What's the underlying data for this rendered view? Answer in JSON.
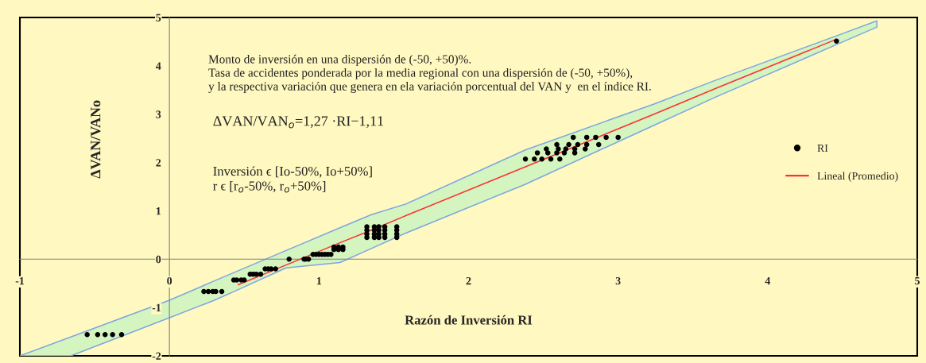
{
  "chart_data": {
    "type": "scatter",
    "xlabel": "Razón de Inversión RI",
    "ylabel": "ΔVAN/VANo",
    "xlim": [
      -1,
      5
    ],
    "ylim": [
      -2,
      5
    ],
    "xticks": [
      -1,
      0,
      1,
      2,
      3,
      4,
      5
    ],
    "yticks": [
      -2,
      -1,
      0,
      1,
      2,
      3,
      4,
      5
    ],
    "grid": false,
    "legend": "right",
    "annotations": [
      "Monto de inversión en una dispersión de (-50, +50)%.\nTasa de accidentes ponderada por la media regional con una dispersión de (-50, +50%),\ny la respectiva variación que genera en ela variación porcentual del VAN y  en el índice RI.",
      "ΔVAN/VAN$_{o}$=1,27 ·RI−1,11",
      "Inversión ϵ [Io-50%, Io+50%]\nr ϵ [r$_{o}$-50%, r$_{o}$+50%]"
    ],
    "series": [
      {
        "name": "RI",
        "color": "#000000",
        "marker": "circle",
        "x": [
          -0.55,
          -0.48,
          -0.43,
          -0.38,
          -0.32,
          0.23,
          0.26,
          0.29,
          0.31,
          0.35,
          0.43,
          0.45,
          0.48,
          0.5,
          0.54,
          0.56,
          0.58,
          0.61,
          0.64,
          0.66,
          0.68,
          0.71,
          0.8,
          0.9,
          0.91,
          0.93,
          0.96,
          0.98,
          1.0,
          1.02,
          1.04,
          1.06,
          1.08,
          1.1,
          1.13,
          1.16,
          1.1,
          1.13,
          1.16,
          1.32,
          1.32,
          1.32,
          1.32,
          1.37,
          1.37,
          1.37,
          1.37,
          1.4,
          1.4,
          1.4,
          1.4,
          1.44,
          1.44,
          1.44,
          1.44,
          1.52,
          1.52,
          1.52,
          1.52,
          2.38,
          2.44,
          2.49,
          2.55,
          2.61,
          2.46,
          2.53,
          2.59,
          2.64,
          2.71,
          2.52,
          2.6,
          2.65,
          2.71,
          2.78,
          2.59,
          2.67,
          2.73,
          2.79,
          2.87,
          2.7,
          2.79,
          2.85,
          2.92,
          3.0,
          4.46
        ],
        "values": [
          -1.56,
          -1.56,
          -1.56,
          -1.56,
          -1.56,
          -0.67,
          -0.67,
          -0.67,
          -0.67,
          -0.67,
          -0.43,
          -0.43,
          -0.43,
          -0.43,
          -0.31,
          -0.31,
          -0.31,
          -0.31,
          -0.2,
          -0.2,
          -0.2,
          -0.2,
          0.0,
          0.0,
          0.0,
          0.0,
          0.1,
          0.1,
          0.1,
          0.1,
          0.1,
          0.1,
          0.1,
          0.2,
          0.2,
          0.2,
          0.25,
          0.25,
          0.25,
          0.45,
          0.52,
          0.6,
          0.67,
          0.45,
          0.52,
          0.6,
          0.67,
          0.45,
          0.52,
          0.6,
          0.67,
          0.45,
          0.52,
          0.6,
          0.67,
          0.45,
          0.52,
          0.6,
          0.67,
          2.07,
          2.07,
          2.07,
          2.07,
          2.07,
          2.2,
          2.2,
          2.2,
          2.2,
          2.2,
          2.28,
          2.28,
          2.28,
          2.28,
          2.28,
          2.37,
          2.37,
          2.37,
          2.37,
          2.37,
          2.52,
          2.52,
          2.52,
          2.52,
          2.52,
          4.51
        ]
      },
      {
        "type": "line",
        "name": "Lineal (Promedio)",
        "color": "#ff3030",
        "marker": "none",
        "x": [
          -1,
          -0.66,
          0,
          0.3,
          0.46,
          0.78,
          1.14,
          1.35,
          1.58,
          2.38,
          3.24,
          3.65,
          4.46,
          4.73
        ],
        "values": [
          null,
          null,
          null,
          null,
          -0.53,
          -0.12,
          0.34,
          0.6,
          0.9,
          1.91,
          3.0,
          3.53,
          4.55,
          null
        ],
        "lower": [
          -2,
          -2,
          -1.21,
          -0.85,
          -0.63,
          -0.18,
          -0.07,
          0.22,
          0.54,
          1.55,
          2.77,
          3.35,
          4.44,
          4.8
        ],
        "upper": [
          -2,
          -1.61,
          -0.85,
          -0.45,
          -0.24,
          0.18,
          0.65,
          0.92,
          1.14,
          2.26,
          3.21,
          3.7,
          4.62,
          4.93
        ]
      }
    ]
  }
}
